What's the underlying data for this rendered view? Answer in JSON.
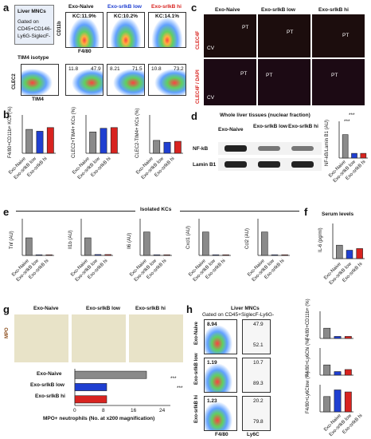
{
  "panels": {
    "a": {
      "label": "a",
      "flow_text": [
        "Liver MNCs",
        "Gated on",
        "CD45+CD146-",
        "Ly6G-SiglecF-"
      ],
      "groups": [
        "Exo-Naive",
        "Exo-srIkB low",
        "Exo-srIkB hi"
      ],
      "kc_labels": [
        "KC:11.9%",
        "KC:10.2%",
        "KC:14.1%"
      ],
      "cd11b": "CD11b",
      "f480": "F4/80",
      "tim4_isotype": "TIM4 isotype",
      "clec2": "CLEC2",
      "tim4": "TIM4",
      "quadrants": [
        "11.8",
        "47.9",
        "8.21",
        "71.5",
        "10.8",
        "73.2"
      ]
    },
    "b": {
      "label": "b",
      "ylabels": [
        "F4/80+CD11b+ KCs (%)",
        "CLEC2+TIM4+ KCs (%)",
        "CLEC2-TIM4+ KCs (%)"
      ],
      "groups": [
        "Exo-Naive",
        "Exo-srIkB low",
        "Exo-srIkB hi"
      ]
    },
    "c": {
      "label": "c",
      "groups": [
        "Exo-Naive",
        "Exo-srIkB low",
        "Exo-srIkB hi"
      ],
      "row1": "CLEC4F",
      "row2": "CLEC4F / DAPI",
      "pt": "PT",
      "cv": "CV"
    },
    "d": {
      "label": "d",
      "title": "Whole liver tissues (nuclear fraction)",
      "groups": [
        "Exo-Naive",
        "Exo-srIkB low",
        "Exo-srIkB hi"
      ],
      "bands": [
        "NF-kB",
        "Lamin B1"
      ],
      "ylabel": "NF-kB/Lamin B1 (AU)",
      "sig": [
        "***",
        "***"
      ]
    },
    "e": {
      "label": "e",
      "title": "Isolated KCs",
      "genes": [
        "Tnf (AU)",
        "Il1b (AU)",
        "Il6 (AU)",
        "Cxcl1 (AU)",
        "Ccl2 (AU)"
      ],
      "groups": [
        "Exo-Naive",
        "Exo-srIkB low",
        "Exo-srIkB hi"
      ]
    },
    "f": {
      "label": "f",
      "title": "Serum levels",
      "ylabel": "IL-6 (pg/ml)",
      "groups": [
        "Exo-Naive",
        "Exo-srIkB low",
        "Exo-srIkB hi"
      ]
    },
    "g": {
      "label": "g",
      "mpo": "MPO",
      "groups": [
        "Exo-Naive",
        "Exo-srIkB low",
        "Exo-srIkB hi"
      ],
      "xlabel": "MPO+ neutrophils (No. at x200 magnification)",
      "xticks": [
        "0",
        "8",
        "16",
        "24"
      ],
      "sig": [
        "***",
        "***"
      ]
    },
    "h": {
      "label": "h",
      "title": "Liver MNCs",
      "gate": "Gated on CD45+SiglecF-Ly6G-",
      "groups": [
        "Exo-Naive",
        "Exo-srIkB low",
        "Exo-srIkB hi"
      ],
      "f480_vals": [
        "8.94",
        "1.19",
        "1.23"
      ],
      "ly6c_vals": [
        "47.9",
        "52.1",
        "10.7",
        "89.3",
        "20.2",
        "79.8"
      ],
      "cd11b": "CD11b",
      "f480": "F4/80",
      "ly6c": "Ly6C",
      "ylabels": [
        "F4/80+CD11b+ (%)",
        "F4/80+Ly6Chi (%)",
        "F4/80+Ly6Clow (%)"
      ]
    }
  },
  "colors": {
    "naive": "#8a8a8a",
    "low": "#1f3fd1",
    "hi": "#d8231f"
  },
  "chart_data": [
    {
      "type": "bar",
      "panel": "b1",
      "categories": [
        "Exo-Naive",
        "Exo-srIkB low",
        "Exo-srIkB hi"
      ],
      "values": [
        13,
        12,
        14
      ],
      "ylabel": "F4/80+CD11b+ KCs (%)",
      "ylim": [
        0,
        20
      ]
    },
    {
      "type": "bar",
      "panel": "b2",
      "categories": [
        "Exo-Naive",
        "Exo-srIkB low",
        "Exo-srIkB hi"
      ],
      "values": [
        58,
        68,
        70
      ],
      "ylabel": "CLEC2+TIM4+ KCs (%)",
      "ylim": [
        0,
        100
      ]
    },
    {
      "type": "bar",
      "panel": "b3",
      "categories": [
        "Exo-Naive",
        "Exo-srIkB low",
        "Exo-srIkB hi"
      ],
      "values": [
        14,
        12,
        13
      ],
      "ylabel": "CLEC2-TIM4+ KCs (%)",
      "ylim": [
        0,
        40
      ]
    },
    {
      "type": "bar",
      "panel": "d",
      "categories": [
        "Exo-Naive",
        "Exo-srIkB low",
        "Exo-srIkB hi"
      ],
      "values": [
        1.0,
        0.2,
        0.2
      ],
      "ylabel": "NF-kB/Lamin B1 (AU)",
      "ylim": [
        0,
        1.5
      ]
    },
    {
      "type": "bar",
      "panel": "e-Tnf",
      "categories": [
        "Exo-Naive",
        "Exo-srIkB low",
        "Exo-srIkB hi"
      ],
      "values": [
        1.0,
        0.02,
        0.02
      ],
      "ylabel": "Tnf (AU)",
      "ylim": [
        0,
        2
      ]
    },
    {
      "type": "bar",
      "panel": "e-Il1b",
      "categories": [
        "Exo-Naive",
        "Exo-srIkB low",
        "Exo-srIkB hi"
      ],
      "values": [
        1.0,
        0.05,
        0.05
      ],
      "ylabel": "Il1b (AU)",
      "ylim": [
        0,
        2
      ]
    },
    {
      "type": "bar",
      "panel": "e-Il6",
      "categories": [
        "Exo-Naive",
        "Exo-srIkB low",
        "Exo-srIkB hi"
      ],
      "values": [
        1.0,
        0.02,
        0.02
      ],
      "ylabel": "Il6 (AU)",
      "ylim": [
        0,
        1.5
      ]
    },
    {
      "type": "bar",
      "panel": "e-Cxcl1",
      "categories": [
        "Exo-Naive",
        "Exo-srIkB low",
        "Exo-srIkB hi"
      ],
      "values": [
        1.0,
        0.02,
        0.02
      ],
      "ylabel": "Cxcl1 (AU)",
      "ylim": [
        0,
        1.5
      ]
    },
    {
      "type": "bar",
      "panel": "e-Ccl2",
      "categories": [
        "Exo-Naive",
        "Exo-srIkB low",
        "Exo-srIkB hi"
      ],
      "values": [
        1.0,
        0.02,
        0.02
      ],
      "ylabel": "Ccl2 (AU)",
      "ylim": [
        0,
        1.5
      ]
    },
    {
      "type": "bar",
      "panel": "f",
      "categories": [
        "Exo-Naive",
        "Exo-srIkB low",
        "Exo-srIkB hi"
      ],
      "values": [
        32,
        20,
        24
      ],
      "ylabel": "IL-6 (pg/ml)",
      "ylim": [
        0,
        80
      ]
    },
    {
      "type": "bar",
      "panel": "g",
      "orientation": "horizontal",
      "categories": [
        "Exo-Naive",
        "Exo-srIkB low",
        "Exo-srIkB hi"
      ],
      "values": [
        18,
        8,
        8
      ],
      "xlabel": "MPO+ neutrophils (No. at x200 magnification)",
      "xlim": [
        0,
        24
      ]
    },
    {
      "type": "bar",
      "panel": "h1",
      "categories": [
        "Exo-Naive",
        "Exo-srIkB low",
        "Exo-srIkB hi"
      ],
      "values": [
        6,
        1.2,
        1.2
      ],
      "ylabel": "F4/80+CD11b+ (%)",
      "ylim": [
        0,
        15
      ]
    },
    {
      "type": "bar",
      "panel": "h2",
      "categories": [
        "Exo-Naive",
        "Exo-srIkB low",
        "Exo-srIkB hi"
      ],
      "values": [
        40,
        14,
        22
      ],
      "ylabel": "F4/80+Ly6Chi (%)",
      "ylim": [
        0,
        100
      ]
    },
    {
      "type": "bar",
      "panel": "h3",
      "categories": [
        "Exo-Naive",
        "Exo-srIkB low",
        "Exo-srIkB hi"
      ],
      "values": [
        60,
        86,
        78
      ],
      "ylabel": "F4/80+Ly6Clow (%)",
      "ylim": [
        0,
        100
      ]
    }
  ]
}
